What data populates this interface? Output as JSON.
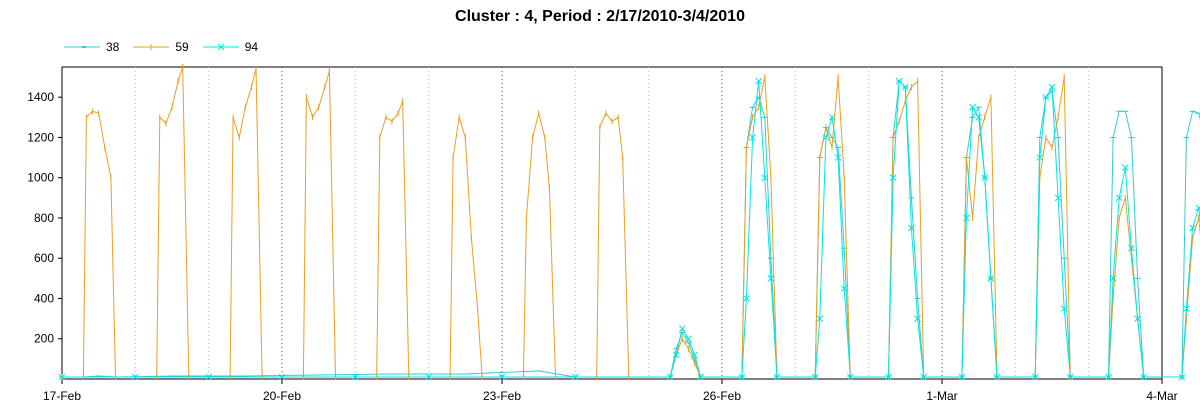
{
  "chart_data": {
    "type": "line",
    "title": "Cluster : 4, Period : 2/17/2010-3/4/2010",
    "xlabel": "",
    "ylabel": "",
    "xlim": [
      "2010-02-17",
      "2010-03-04"
    ],
    "ylim": [
      0,
      1550
    ],
    "grid": true,
    "legend_position": "top-left",
    "x_ticks": [
      "17-Feb",
      "20-Feb",
      "23-Feb",
      "26-Feb",
      "1-Mar",
      "4-Mar"
    ],
    "y_ticks": [
      200,
      400,
      600,
      800,
      1000,
      1200,
      1400
    ],
    "series": [
      {
        "name": "38",
        "color": "#33cccc",
        "marker": "dash",
        "points": [
          [
            "2010-02-17 00:00",
            10
          ],
          [
            "2010-02-17 07:00",
            10
          ],
          [
            "2010-02-17 12:00",
            15
          ],
          [
            "2010-02-17 18:00",
            10
          ],
          [
            "2010-02-18 12:00",
            15
          ],
          [
            "2010-02-19 12:00",
            15
          ],
          [
            "2010-02-20 12:00",
            20
          ],
          [
            "2010-02-21 12:00",
            25
          ],
          [
            "2010-02-22 12:00",
            25
          ],
          [
            "2010-02-23 12:00",
            40
          ],
          [
            "2010-02-24 00:00",
            10
          ],
          [
            "2010-02-25 07:00",
            10
          ],
          [
            "2010-02-25 09:00",
            150
          ],
          [
            "2010-02-25 11:00",
            230
          ],
          [
            "2010-02-25 13:00",
            180
          ],
          [
            "2010-02-25 15:00",
            100
          ],
          [
            "2010-02-25 17:00",
            10
          ],
          [
            "2010-02-26 06:30",
            10
          ],
          [
            "2010-02-26 08:00",
            1150
          ],
          [
            "2010-02-26 10:00",
            1350
          ],
          [
            "2010-02-26 12:00",
            1400
          ],
          [
            "2010-02-26 14:00",
            1300
          ],
          [
            "2010-02-26 16:00",
            600
          ],
          [
            "2010-02-26 18:00",
            10
          ],
          [
            "2010-02-27 06:30",
            10
          ],
          [
            "2010-02-27 08:00",
            1100
          ],
          [
            "2010-02-27 10:00",
            1250
          ],
          [
            "2010-02-27 12:00",
            1200
          ],
          [
            "2010-02-27 14:00",
            1150
          ],
          [
            "2010-02-27 16:00",
            650
          ],
          [
            "2010-02-27 18:00",
            10
          ],
          [
            "2010-02-28 06:30",
            10
          ],
          [
            "2010-02-28 08:00",
            1200
          ],
          [
            "2010-02-28 10:00",
            1480
          ],
          [
            "2010-02-28 12:00",
            1450
          ],
          [
            "2010-02-28 14:00",
            900
          ],
          [
            "2010-02-28 16:00",
            400
          ],
          [
            "2010-02-28 18:00",
            10
          ],
          [
            "2010-03-01 06:30",
            10
          ],
          [
            "2010-03-01 08:00",
            1100
          ],
          [
            "2010-03-01 10:00",
            1300
          ],
          [
            "2010-03-01 12:00",
            1350
          ],
          [
            "2010-03-01 14:00",
            1000
          ],
          [
            "2010-03-01 16:00",
            500
          ],
          [
            "2010-03-01 18:00",
            10
          ],
          [
            "2010-03-02 06:30",
            10
          ],
          [
            "2010-03-02 08:00",
            1200
          ],
          [
            "2010-03-02 10:00",
            1400
          ],
          [
            "2010-03-02 12:00",
            1430
          ],
          [
            "2010-03-02 14:00",
            1200
          ],
          [
            "2010-03-02 16:00",
            600
          ],
          [
            "2010-03-02 18:00",
            10
          ],
          [
            "2010-03-03 06:30",
            10
          ],
          [
            "2010-03-03 08:00",
            1200
          ],
          [
            "2010-03-03 10:00",
            1330
          ],
          [
            "2010-03-03 12:00",
            1330
          ],
          [
            "2010-03-03 14:00",
            1200
          ],
          [
            "2010-03-03 16:00",
            500
          ],
          [
            "2010-03-03 18:00",
            10
          ],
          [
            "2010-03-04 06:30",
            10
          ],
          [
            "2010-03-04 08:00",
            1200
          ],
          [
            "2010-03-04 10:00",
            1330
          ],
          [
            "2010-03-04 12:00",
            1320
          ],
          [
            "2010-03-04 14:00",
            1200
          ],
          [
            "2010-03-04 16:00",
            500
          ],
          [
            "2010-03-04 18:00",
            10
          ]
        ]
      },
      {
        "name": "59",
        "color": "#e8a020",
        "marker": "plus",
        "points": [
          [
            "2010-02-17 00:00",
            10
          ],
          [
            "2010-02-17 07:00",
            10
          ],
          [
            "2010-02-17 08:00",
            1300
          ],
          [
            "2010-02-17 10:00",
            1330
          ],
          [
            "2010-02-17 12:00",
            1320
          ],
          [
            "2010-02-17 14:00",
            1150
          ],
          [
            "2010-02-17 16:00",
            1000
          ],
          [
            "2010-02-17 17:30",
            10
          ],
          [
            "2010-02-18 07:00",
            10
          ],
          [
            "2010-02-18 08:00",
            1300
          ],
          [
            "2010-02-18 10:00",
            1270
          ],
          [
            "2010-02-18 12:00",
            1350
          ],
          [
            "2010-02-18 14:00",
            1480
          ],
          [
            "2010-02-18 15:30",
            1550
          ],
          [
            "2010-02-18 17:30",
            10
          ],
          [
            "2010-02-19 07:00",
            10
          ],
          [
            "2010-02-19 08:00",
            1300
          ],
          [
            "2010-02-19 10:00",
            1200
          ],
          [
            "2010-02-19 12:00",
            1350
          ],
          [
            "2010-02-19 14:00",
            1450
          ],
          [
            "2010-02-19 15:30",
            1540
          ],
          [
            "2010-02-19 17:30",
            10
          ],
          [
            "2010-02-20 07:00",
            10
          ],
          [
            "2010-02-20 08:00",
            1400
          ],
          [
            "2010-02-20 10:00",
            1300
          ],
          [
            "2010-02-20 12:00",
            1350
          ],
          [
            "2010-02-20 14:00",
            1450
          ],
          [
            "2010-02-20 15:30",
            1530
          ],
          [
            "2010-02-20 17:30",
            10
          ],
          [
            "2010-02-21 07:00",
            10
          ],
          [
            "2010-02-21 08:00",
            1200
          ],
          [
            "2010-02-21 10:00",
            1300
          ],
          [
            "2010-02-21 12:00",
            1280
          ],
          [
            "2010-02-21 14:00",
            1320
          ],
          [
            "2010-02-21 15:30",
            1380
          ],
          [
            "2010-02-21 17:30",
            10
          ],
          [
            "2010-02-22 07:00",
            10
          ],
          [
            "2010-02-22 08:00",
            1100
          ],
          [
            "2010-02-22 10:00",
            1300
          ],
          [
            "2010-02-22 12:00",
            1200
          ],
          [
            "2010-02-22 14:00",
            700
          ],
          [
            "2010-02-22 16:00",
            350
          ],
          [
            "2010-02-22 17:30",
            10
          ],
          [
            "2010-02-23 07:00",
            10
          ],
          [
            "2010-02-23 08:00",
            800
          ],
          [
            "2010-02-23 10:00",
            1200
          ],
          [
            "2010-02-23 12:00",
            1320
          ],
          [
            "2010-02-23 14:00",
            1200
          ],
          [
            "2010-02-23 15:30",
            950
          ],
          [
            "2010-02-23 17:30",
            10
          ],
          [
            "2010-02-24 07:00",
            10
          ],
          [
            "2010-02-24 08:00",
            1250
          ],
          [
            "2010-02-24 10:00",
            1320
          ],
          [
            "2010-02-24 12:00",
            1280
          ],
          [
            "2010-02-24 14:00",
            1300
          ],
          [
            "2010-02-24 15:30",
            1100
          ],
          [
            "2010-02-24 17:30",
            10
          ],
          [
            "2010-02-25 07:00",
            10
          ],
          [
            "2010-02-25 09:00",
            120
          ],
          [
            "2010-02-25 11:00",
            200
          ],
          [
            "2010-02-25 13:00",
            150
          ],
          [
            "2010-02-25 15:00",
            80
          ],
          [
            "2010-02-25 17:00",
            10
          ],
          [
            "2010-02-26 06:30",
            10
          ],
          [
            "2010-02-26 08:00",
            1150
          ],
          [
            "2010-02-26 10:00",
            1300
          ],
          [
            "2010-02-26 12:00",
            1350
          ],
          [
            "2010-02-26 14:00",
            1500
          ],
          [
            "2010-02-26 16:00",
            1000
          ],
          [
            "2010-02-26 18:00",
            10
          ],
          [
            "2010-02-27 06:30",
            10
          ],
          [
            "2010-02-27 08:00",
            1100
          ],
          [
            "2010-02-27 10:00",
            1250
          ],
          [
            "2010-02-27 12:00",
            1150
          ],
          [
            "2010-02-27 14:00",
            1500
          ],
          [
            "2010-02-27 16:00",
            1000
          ],
          [
            "2010-02-27 18:00",
            10
          ],
          [
            "2010-02-28 06:30",
            10
          ],
          [
            "2010-02-28 08:00",
            1200
          ],
          [
            "2010-02-28 10:00",
            1280
          ],
          [
            "2010-02-28 12:00",
            1380
          ],
          [
            "2010-02-28 14:00",
            1450
          ],
          [
            "2010-02-28 16:00",
            1480
          ],
          [
            "2010-02-28 18:00",
            10
          ],
          [
            "2010-03-01 06:30",
            10
          ],
          [
            "2010-03-01 08:00",
            1100
          ],
          [
            "2010-03-01 10:00",
            800
          ],
          [
            "2010-03-01 12:00",
            1200
          ],
          [
            "2010-03-01 14:00",
            1300
          ],
          [
            "2010-03-01 16:00",
            1400
          ],
          [
            "2010-03-01 18:00",
            10
          ],
          [
            "2010-03-02 06:30",
            10
          ],
          [
            "2010-03-02 08:00",
            1000
          ],
          [
            "2010-03-02 10:00",
            1200
          ],
          [
            "2010-03-02 12:00",
            1150
          ],
          [
            "2010-03-02 14:00",
            1300
          ],
          [
            "2010-03-02 16:00",
            1500
          ],
          [
            "2010-03-02 18:00",
            10
          ],
          [
            "2010-03-03 06:30",
            10
          ],
          [
            "2010-03-03 08:00",
            400
          ],
          [
            "2010-03-03 10:00",
            800
          ],
          [
            "2010-03-03 12:00",
            900
          ],
          [
            "2010-03-03 14:00",
            600
          ],
          [
            "2010-03-03 16:00",
            300
          ],
          [
            "2010-03-03 18:00",
            10
          ],
          [
            "2010-03-04 06:30",
            10
          ],
          [
            "2010-03-04 08:00",
            300
          ],
          [
            "2010-03-04 10:00",
            700
          ],
          [
            "2010-03-04 12:00",
            800
          ],
          [
            "2010-03-04 14:00",
            500
          ],
          [
            "2010-03-04 16:00",
            200
          ],
          [
            "2010-03-04 18:00",
            10
          ]
        ]
      },
      {
        "name": "94",
        "color": "#00e5e5",
        "marker": "x",
        "points": [
          [
            "2010-02-17 00:00",
            10
          ],
          [
            "2010-02-18 00:00",
            10
          ],
          [
            "2010-02-19 00:00",
            10
          ],
          [
            "2010-02-20 00:00",
            10
          ],
          [
            "2010-02-21 00:00",
            10
          ],
          [
            "2010-02-22 00:00",
            10
          ],
          [
            "2010-02-23 00:00",
            10
          ],
          [
            "2010-02-24 00:00",
            10
          ],
          [
            "2010-02-25 07:00",
            10
          ],
          [
            "2010-02-25 09:00",
            120
          ],
          [
            "2010-02-25 11:00",
            250
          ],
          [
            "2010-02-25 13:00",
            200
          ],
          [
            "2010-02-25 15:00",
            120
          ],
          [
            "2010-02-25 17:00",
            10
          ],
          [
            "2010-02-26 06:30",
            10
          ],
          [
            "2010-02-26 08:00",
            400
          ],
          [
            "2010-02-26 10:00",
            1200
          ],
          [
            "2010-02-26 12:00",
            1480
          ],
          [
            "2010-02-26 14:00",
            1000
          ],
          [
            "2010-02-26 16:00",
            500
          ],
          [
            "2010-02-26 18:00",
            10
          ],
          [
            "2010-02-27 06:30",
            10
          ],
          [
            "2010-02-27 08:00",
            300
          ],
          [
            "2010-02-27 10:00",
            1200
          ],
          [
            "2010-02-27 12:00",
            1300
          ],
          [
            "2010-02-27 14:00",
            1100
          ],
          [
            "2010-02-27 16:00",
            450
          ],
          [
            "2010-02-27 18:00",
            10
          ],
          [
            "2010-02-28 06:30",
            10
          ],
          [
            "2010-02-28 08:00",
            1000
          ],
          [
            "2010-02-28 10:00",
            1480
          ],
          [
            "2010-02-28 12:00",
            1450
          ],
          [
            "2010-02-28 14:00",
            750
          ],
          [
            "2010-02-28 16:00",
            300
          ],
          [
            "2010-02-28 18:00",
            10
          ],
          [
            "2010-03-01 06:30",
            10
          ],
          [
            "2010-03-01 08:00",
            800
          ],
          [
            "2010-03-01 10:00",
            1350
          ],
          [
            "2010-03-01 12:00",
            1300
          ],
          [
            "2010-03-01 14:00",
            1000
          ],
          [
            "2010-03-01 16:00",
            500
          ],
          [
            "2010-03-01 18:00",
            10
          ],
          [
            "2010-03-02 06:30",
            10
          ],
          [
            "2010-03-02 08:00",
            1100
          ],
          [
            "2010-03-02 10:00",
            1400
          ],
          [
            "2010-03-02 12:00",
            1450
          ],
          [
            "2010-03-02 14:00",
            900
          ],
          [
            "2010-03-02 16:00",
            350
          ],
          [
            "2010-03-02 18:00",
            10
          ],
          [
            "2010-03-03 06:30",
            10
          ],
          [
            "2010-03-03 08:00",
            500
          ],
          [
            "2010-03-03 10:00",
            900
          ],
          [
            "2010-03-03 12:00",
            1050
          ],
          [
            "2010-03-03 14:00",
            650
          ],
          [
            "2010-03-03 16:00",
            300
          ],
          [
            "2010-03-03 18:00",
            10
          ],
          [
            "2010-03-04 06:30",
            10
          ],
          [
            "2010-03-04 08:00",
            350
          ],
          [
            "2010-03-04 10:00",
            750
          ],
          [
            "2010-03-04 12:00",
            850
          ],
          [
            "2010-03-04 14:00",
            600
          ],
          [
            "2010-03-04 16:00",
            250
          ],
          [
            "2010-03-04 18:00",
            10
          ]
        ]
      }
    ]
  }
}
